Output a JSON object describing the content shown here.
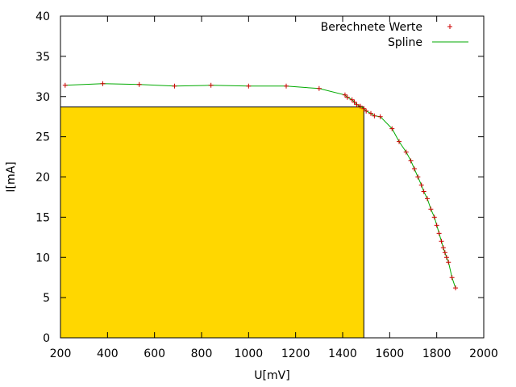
{
  "chart_data": {
    "type": "line",
    "xlabel": "U[mV]",
    "ylabel": "I[mA]",
    "xlim": [
      200,
      2000
    ],
    "ylim": [
      0,
      40
    ],
    "x_ticks": [
      200,
      400,
      600,
      800,
      1000,
      1200,
      1400,
      1600,
      1800,
      2000
    ],
    "y_ticks": [
      0,
      5,
      10,
      15,
      20,
      25,
      30,
      35,
      40
    ],
    "grid": false,
    "legend_position": "top-right",
    "max_power_rectangle": {
      "u": 1490,
      "i": 28.7,
      "color": "#ffd700"
    },
    "series": [
      {
        "name": "Berechnete Werte",
        "marker": "plus",
        "color": "#cc0000",
        "points": [
          [
            220,
            31.4
          ],
          [
            380,
            31.6
          ],
          [
            535,
            31.5
          ],
          [
            685,
            31.3
          ],
          [
            840,
            31.4
          ],
          [
            1000,
            31.3
          ],
          [
            1160,
            31.3
          ],
          [
            1300,
            31.0
          ],
          [
            1410,
            30.2
          ],
          [
            1420,
            29.9
          ],
          [
            1440,
            29.6
          ],
          [
            1450,
            29.3
          ],
          [
            1460,
            29.0
          ],
          [
            1475,
            28.8
          ],
          [
            1490,
            28.5
          ],
          [
            1500,
            28.2
          ],
          [
            1520,
            27.9
          ],
          [
            1535,
            27.6
          ],
          [
            1560,
            27.5
          ],
          [
            1610,
            26.0
          ],
          [
            1640,
            24.4
          ],
          [
            1670,
            23.1
          ],
          [
            1690,
            22.0
          ],
          [
            1705,
            21.0
          ],
          [
            1720,
            20.0
          ],
          [
            1735,
            19.0
          ],
          [
            1745,
            18.2
          ],
          [
            1760,
            17.3
          ],
          [
            1775,
            16.0
          ],
          [
            1790,
            15.0
          ],
          [
            1800,
            14.0
          ],
          [
            1810,
            13.0
          ],
          [
            1820,
            12.0
          ],
          [
            1828,
            11.2
          ],
          [
            1835,
            10.6
          ],
          [
            1842,
            10.0
          ],
          [
            1850,
            9.4
          ],
          [
            1865,
            7.5
          ],
          [
            1880,
            6.2
          ]
        ]
      },
      {
        "name": "Spline",
        "marker": "line",
        "color": "#00aa00"
      }
    ]
  }
}
